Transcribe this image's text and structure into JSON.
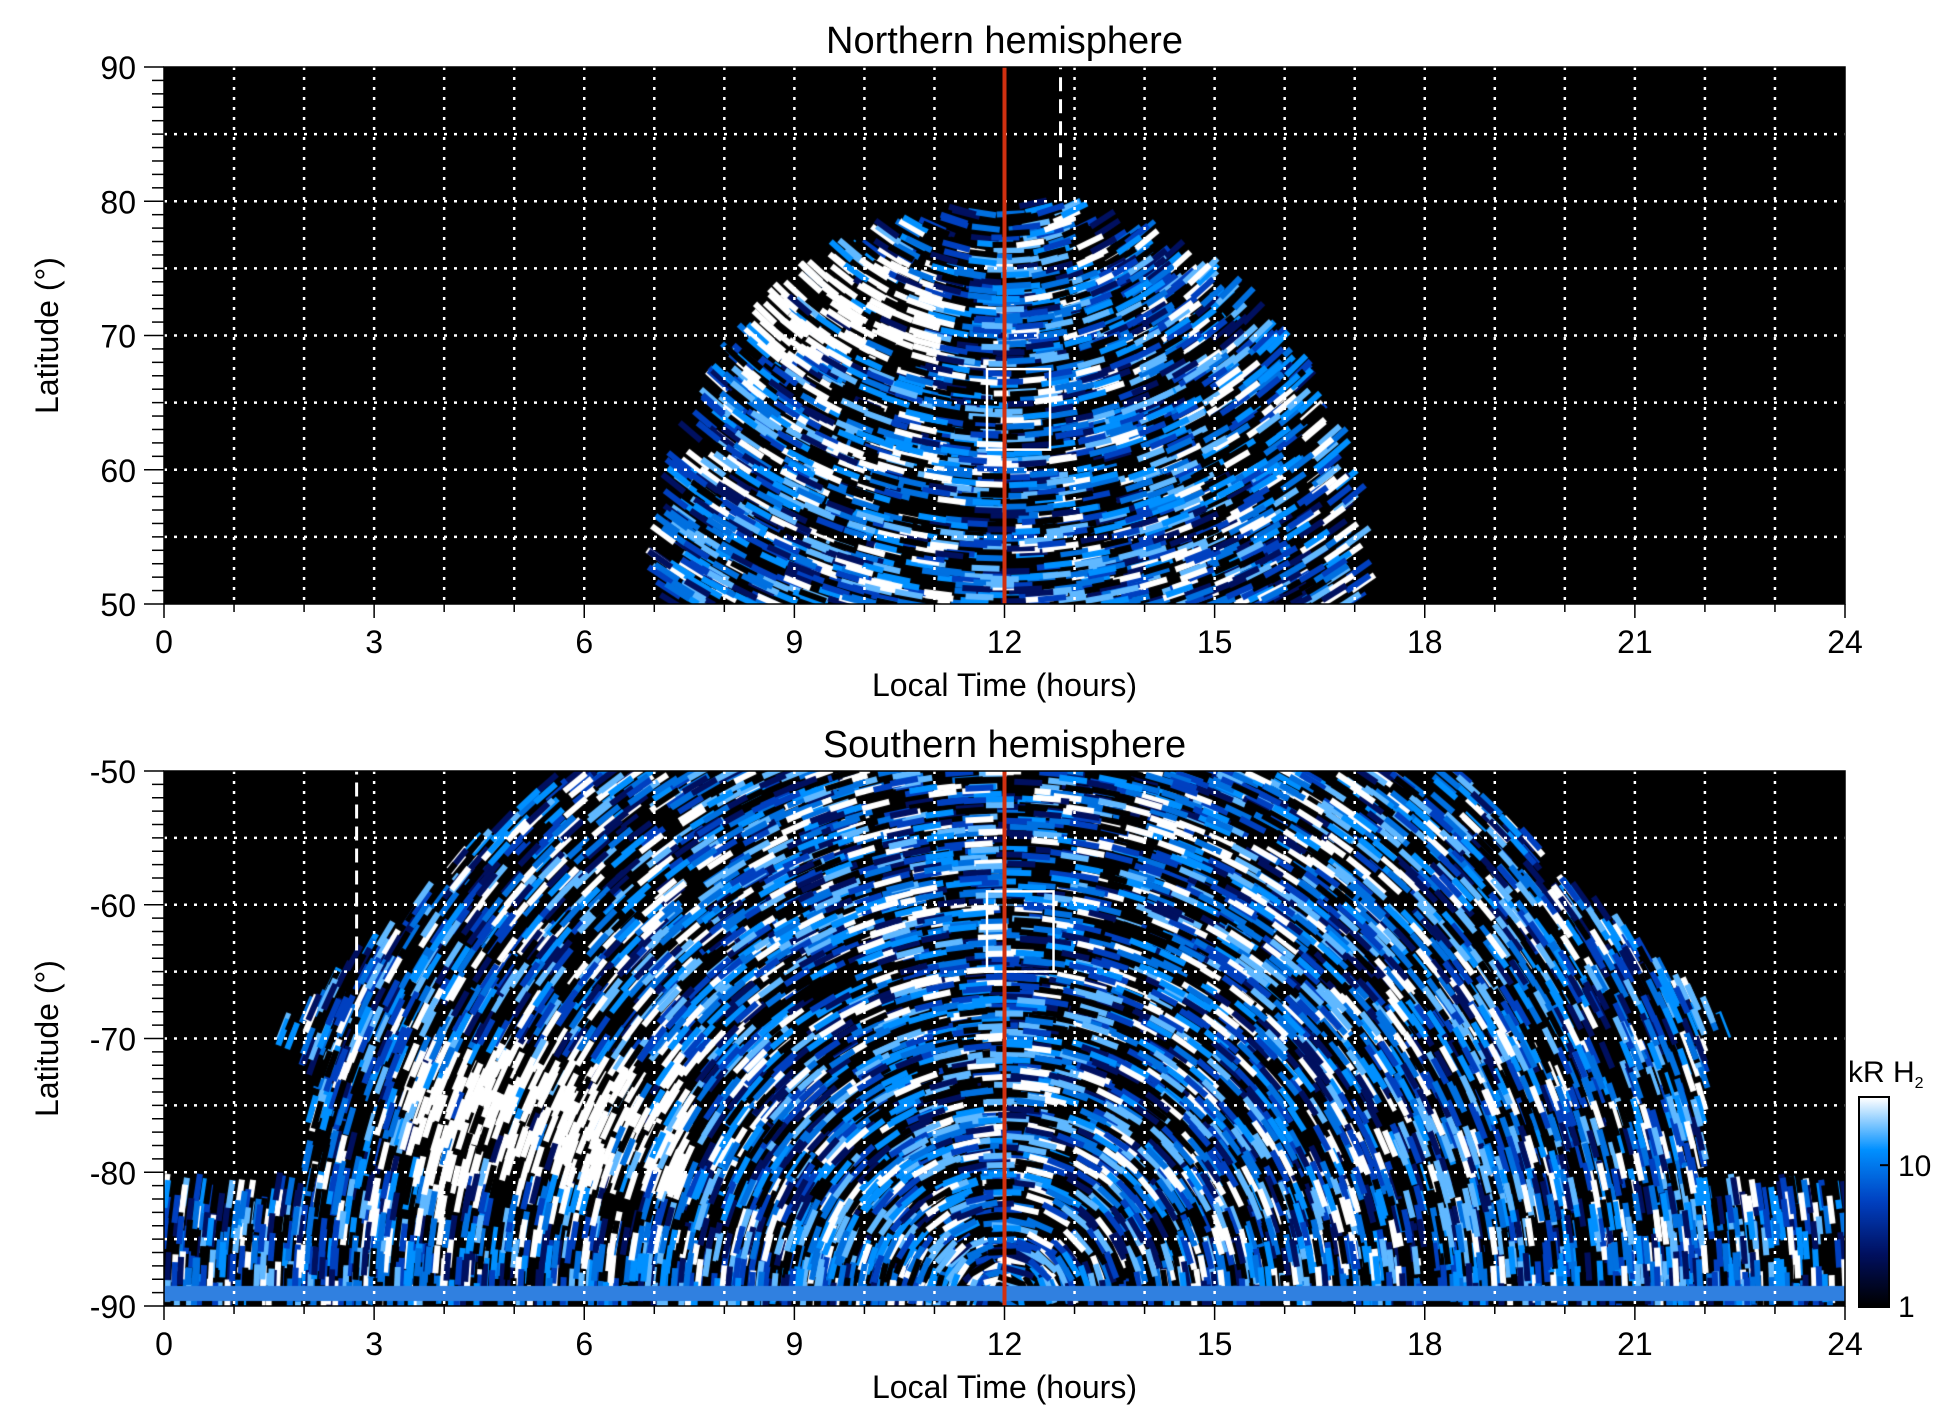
{
  "chart_data": [
    {
      "type": "heatmap",
      "title": "Northern hemisphere",
      "xlabel": "Local Time (hours)",
      "ylabel": "Latitude (°)",
      "xlim": [
        0,
        24
      ],
      "ylim": [
        50,
        90
      ],
      "xticks": [
        0,
        3,
        6,
        9,
        12,
        15,
        18,
        21,
        24
      ],
      "yticks": [
        50,
        60,
        70,
        80,
        90
      ],
      "grid": true,
      "coverage_lt_range": [
        7,
        17.2
      ],
      "coverage_lat_max": 80,
      "bright_region": {
        "lt": [
          8.5,
          11
        ],
        "lat": [
          68,
          76
        ]
      },
      "markers": {
        "solid_line_lt": 12,
        "solid_line_color": "#d03010",
        "dashed_line_lt": 12.8,
        "dashed_line_lat": [
          80,
          90
        ],
        "box": {
          "lt": [
            11.75,
            12.65
          ],
          "lat": [
            61.5,
            67.5
          ]
        }
      }
    },
    {
      "type": "heatmap",
      "title": "Southern hemisphere",
      "xlabel": "Local Time (hours)",
      "ylabel": "Latitude (°)",
      "xlim": [
        0,
        24
      ],
      "ylim": [
        -90,
        -50
      ],
      "xticks": [
        0,
        3,
        6,
        9,
        12,
        15,
        18,
        21,
        24
      ],
      "yticks": [
        -90,
        -80,
        -70,
        -60,
        -50
      ],
      "grid": true,
      "bright_region": {
        "lt": [
          3.5,
          7.5
        ],
        "lat": [
          -81,
          -71
        ]
      },
      "markers": {
        "solid_line_lt": 12,
        "solid_line_color": "#d03010",
        "dashed_line_lt": 2.75,
        "dashed_line_lat": [
          -70,
          -50
        ],
        "box": {
          "lt": [
            11.75,
            12.7
          ],
          "lat": [
            -65,
            -59
          ]
        }
      }
    }
  ],
  "colorbar": {
    "label": "kR H",
    "label_sub": "2",
    "scale": "log",
    "range": [
      1,
      30
    ],
    "ticks": [
      {
        "value": 1,
        "label": "1"
      },
      {
        "value": 10,
        "label": "10"
      }
    ],
    "colors": [
      "#000000",
      "#001060",
      "#0040c0",
      "#0090ff",
      "#ffffff"
    ]
  }
}
